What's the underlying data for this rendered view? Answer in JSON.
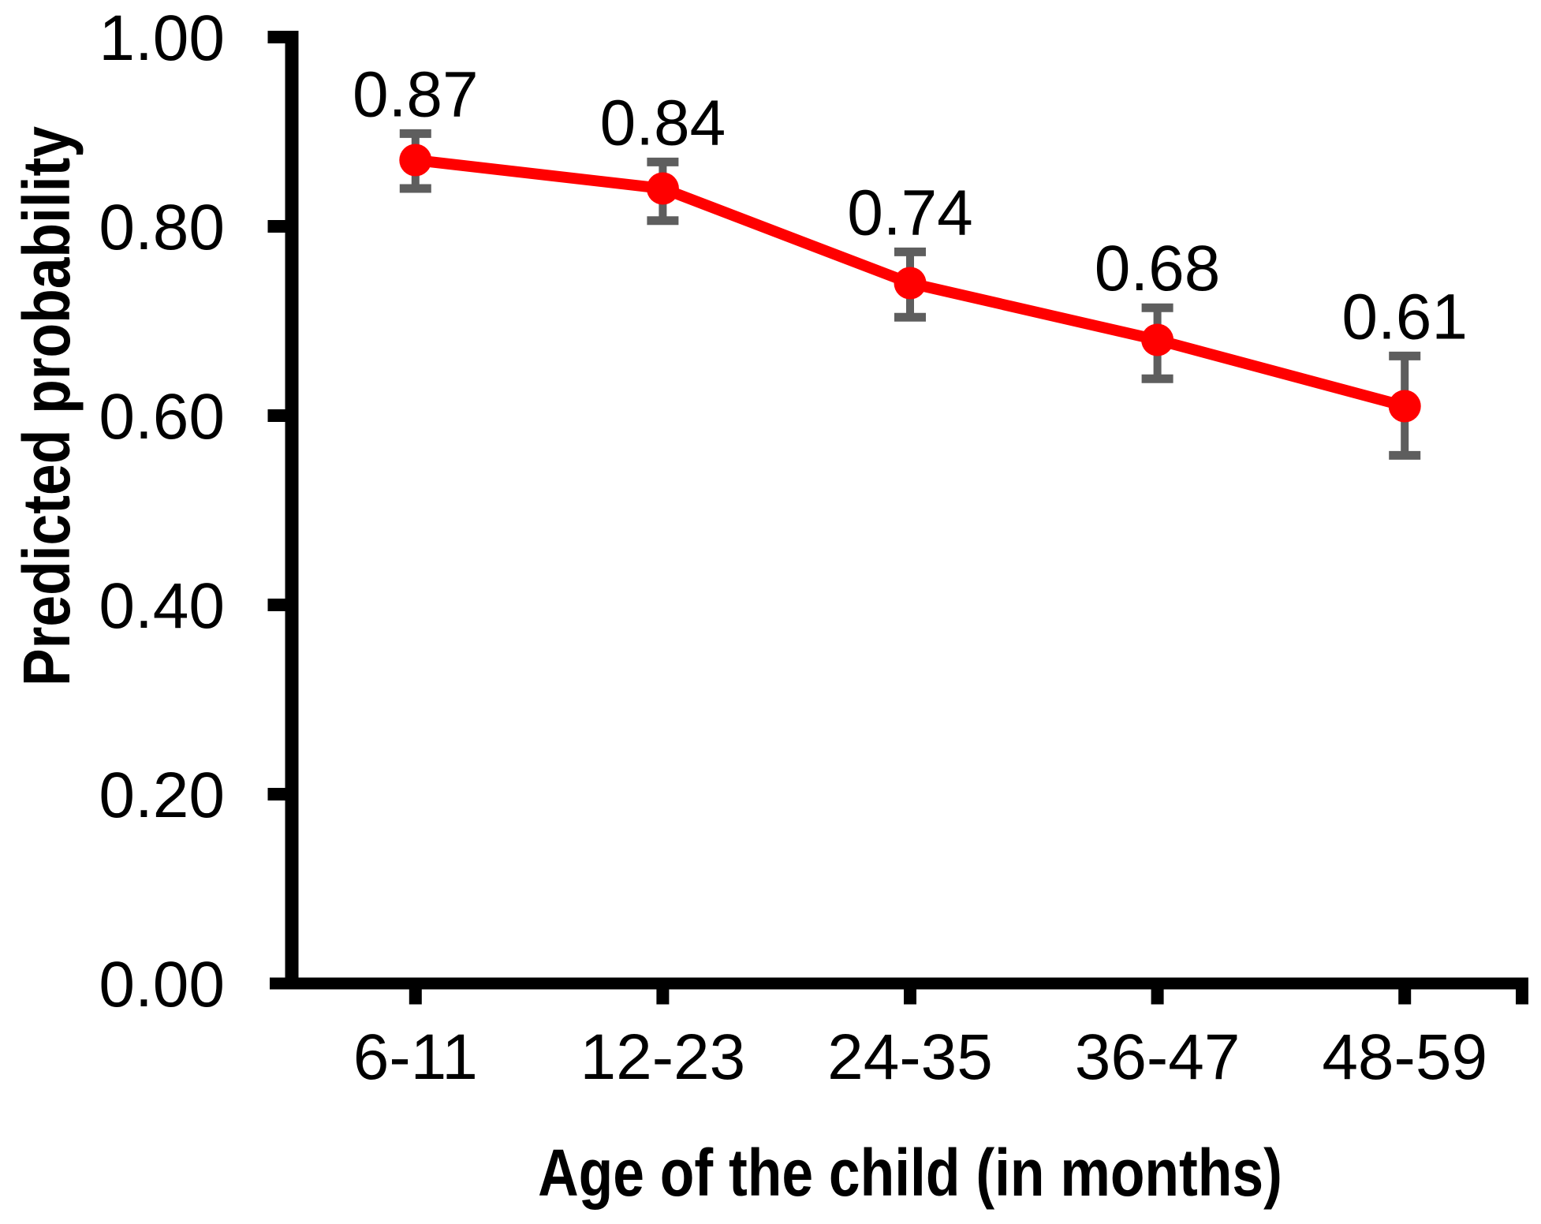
{
  "figure": {
    "background": "#ffffff",
    "colors": {
      "line": "#ff0000",
      "marker": "#ff0000",
      "error_bar": "#5e5e5e",
      "axis": "#000000",
      "text": "#000000"
    }
  },
  "chart_data": {
    "type": "line",
    "title": "",
    "xlabel": "Age of the child (in months)",
    "ylabel": "Predicted probability",
    "categories": [
      "6-11",
      "12-23",
      "24-35",
      "36-47",
      "48-59"
    ],
    "series": [
      {
        "name": "Predicted probability",
        "values": [
          0.87,
          0.84,
          0.74,
          0.68,
          0.61
        ],
        "err_up": [
          0.028,
          0.028,
          0.033,
          0.034,
          0.053
        ],
        "err_down": [
          0.03,
          0.034,
          0.036,
          0.041,
          0.052
        ]
      }
    ],
    "data_labels": [
      "0.87",
      "0.84",
      "0.74",
      "0.68",
      "0.61"
    ],
    "ylim": [
      0.0,
      1.0
    ],
    "yticks": [
      0.0,
      0.2,
      0.4,
      0.6,
      0.8,
      1.0
    ],
    "ytick_labels": [
      "0.00",
      "0.20",
      "0.40",
      "0.60",
      "0.80",
      "1.00"
    ],
    "grid": false,
    "legend_position": "none",
    "error_bars_visible": true,
    "markers_visible": true
  }
}
